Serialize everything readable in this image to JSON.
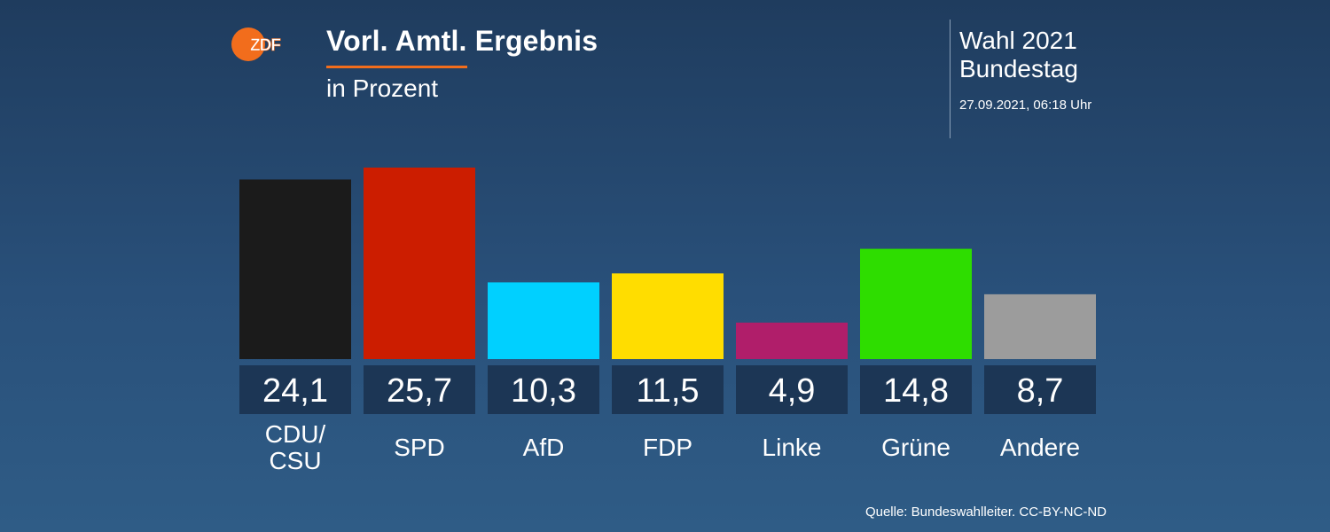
{
  "header": {
    "logo_text": "ZDF",
    "title": "Vorl. Amtl. Ergebnis",
    "subtitle": "in Prozent"
  },
  "info": {
    "line1": "Wahl 2021",
    "line2": "Bundestag",
    "date": "27.09.2021, 06:18 Uhr"
  },
  "source": "Quelle: Bundeswahlleiter. CC-BY-NC-ND",
  "colors": {
    "accent": "#f26d1c",
    "value_box": "#1c3655"
  },
  "chart_data": {
    "type": "bar",
    "title": "Vorl. Amtl. Ergebnis",
    "subtitle": "in Prozent",
    "categories": [
      "CDU/\nCSU",
      "SPD",
      "AfD",
      "FDP",
      "Linke",
      "Grüne",
      "Andere"
    ],
    "values": [
      24.1,
      25.7,
      10.3,
      11.5,
      4.9,
      14.8,
      8.7
    ],
    "value_labels": [
      "24,1",
      "25,7",
      "10,3",
      "11,5",
      "4,9",
      "14,8",
      "8,7"
    ],
    "colors": [
      "#1b1b1b",
      "#cc1d00",
      "#00d0ff",
      "#ffdd00",
      "#b01e6a",
      "#2edd00",
      "#9c9c9c"
    ],
    "grid": false,
    "legend": "none"
  }
}
